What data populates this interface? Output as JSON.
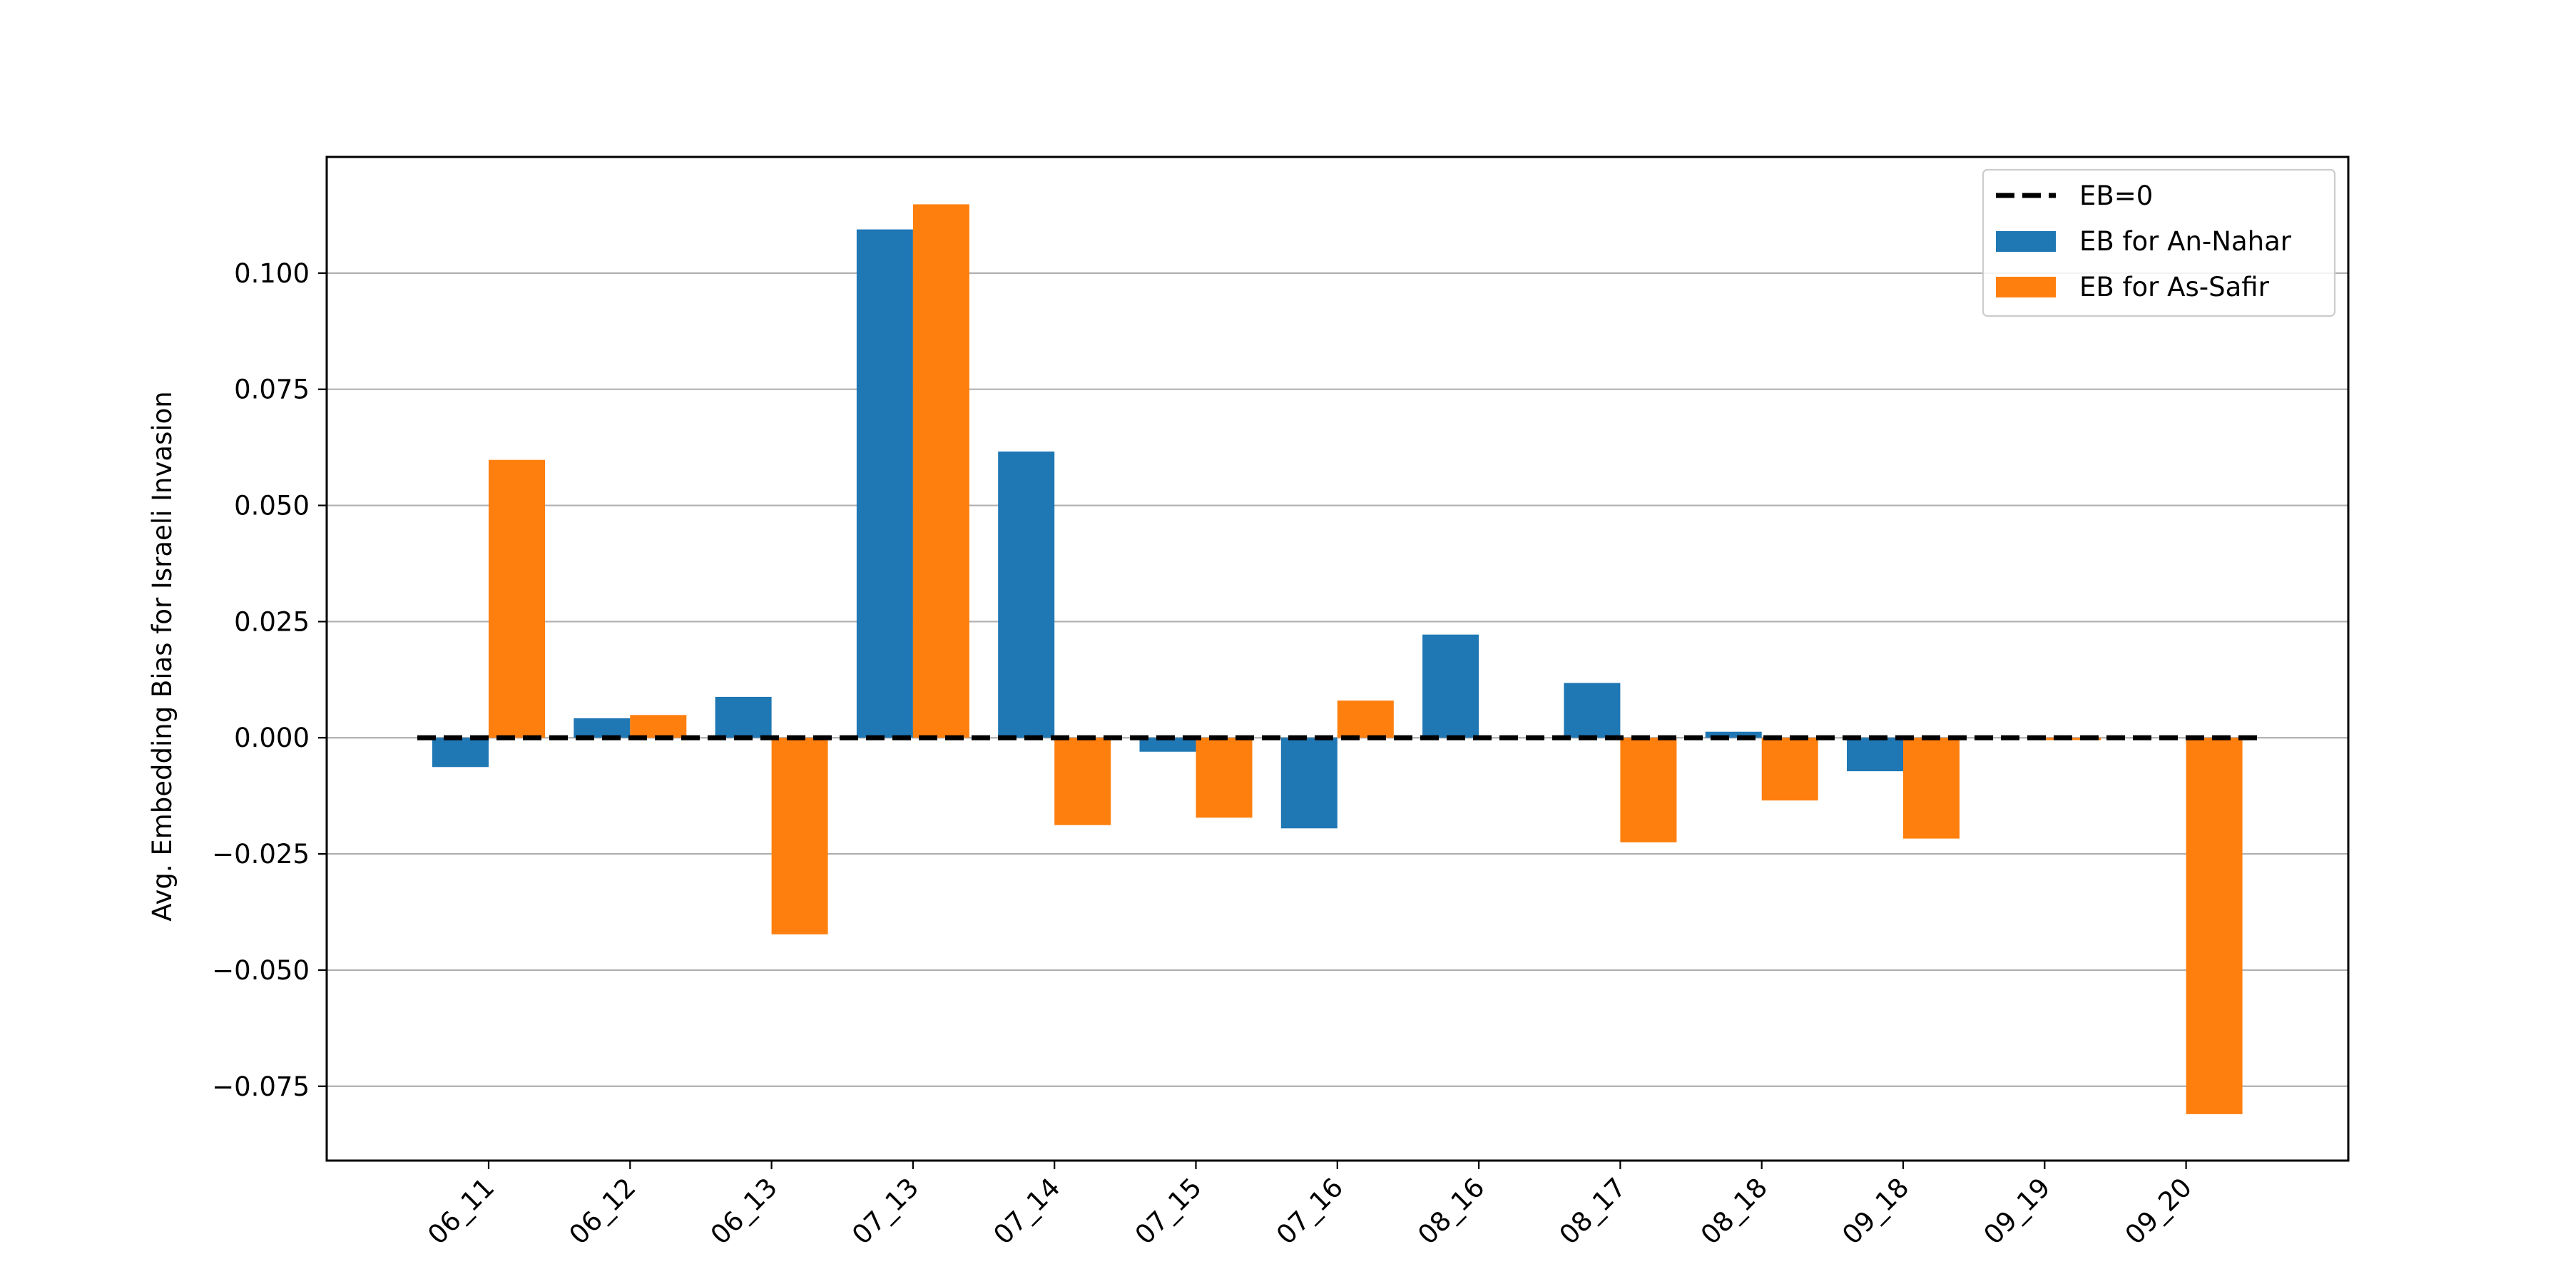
{
  "chart_data": {
    "type": "bar",
    "title": "",
    "xlabel": "",
    "ylabel": "Avg. Embedding Bias for Israeli Invasion",
    "categories": [
      "06_11",
      "06_12",
      "06_13",
      "07_13",
      "07_14",
      "07_15",
      "07_16",
      "08_16",
      "08_17",
      "08_18",
      "09_18",
      "09_19",
      "09_20"
    ],
    "series": [
      {
        "name": "EB for An-Nahar",
        "color": "#1f77b4",
        "values": [
          -0.0063,
          0.0042,
          0.0088,
          0.1094,
          0.0616,
          -0.003,
          -0.0195,
          0.0222,
          0.0118,
          0.0013,
          -0.0072,
          0.0,
          0.0
        ]
      },
      {
        "name": "EB for As-Safir",
        "color": "#ff7f0e",
        "values": [
          0.0598,
          0.0049,
          -0.0423,
          0.1148,
          -0.0188,
          -0.0172,
          0.008,
          0.0,
          -0.0225,
          -0.0135,
          -0.0217,
          -0.0005,
          -0.081
        ]
      }
    ],
    "reference_line": {
      "label": "EB=0",
      "value": 0,
      "color": "#000000",
      "style": "dashed"
    },
    "ylim": [
      -0.091,
      0.125
    ],
    "yticks": [
      -0.075,
      -0.05,
      -0.025,
      0.0,
      0.025,
      0.05,
      0.075,
      0.1
    ],
    "ytick_labels": [
      "−0.075",
      "−0.050",
      "−0.025",
      "0.000",
      "0.025",
      "0.050",
      "0.075",
      "0.100"
    ],
    "grid": "horizontal",
    "legend_position": "top-right"
  }
}
